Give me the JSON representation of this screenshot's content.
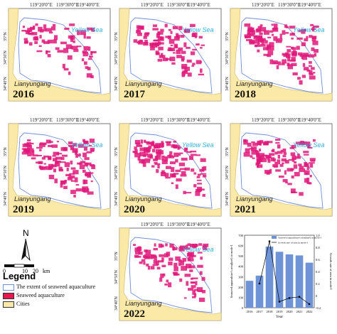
{
  "panels": [
    {
      "year": "2016",
      "density": 0.35
    },
    {
      "year": "2017",
      "density": 0.55
    },
    {
      "year": "2018",
      "density": 0.85
    },
    {
      "year": "2019",
      "density": 0.8
    },
    {
      "year": "2020",
      "density": 0.75
    },
    {
      "year": "2021",
      "density": 0.72
    },
    {
      "year": "2022",
      "density": 0.6
    }
  ],
  "map_text": {
    "sea": "Yellow Sea",
    "city": "Lianyungang",
    "lon_ticks": [
      "119°20'0\"E",
      "119°30'0\"E",
      "119°40'0\"E"
    ],
    "lat_ticks": [
      "35°N",
      "34°50'N",
      "34°40'N"
    ]
  },
  "legend": {
    "north": "N",
    "scale_ticks": [
      "0",
      "10",
      "20"
    ],
    "scale_unit": "km",
    "title": "Legend",
    "items": [
      {
        "label": "The extent of seaweed aquaculture",
        "color": "#ffffff",
        "border": "#6f8ed8"
      },
      {
        "label": "Seaweed aquaculture",
        "color": "#e8174f",
        "border": "#333333"
      },
      {
        "label": "Cities",
        "color": "#fbe9a8",
        "border": "#333333"
      }
    ]
  },
  "colors": {
    "land": "#fbe9a8",
    "sea": "#ffffff",
    "extent": "#6f8ed8",
    "seaweed": "#e0187a",
    "bar": "#6e93d6",
    "line": "#000000"
  },
  "chart_data": {
    "type": "bar",
    "categories": [
      "2016",
      "2017",
      "2018",
      "2019",
      "2020",
      "2021",
      "2022"
    ],
    "series": [
      {
        "name": "Seaweed aquaculture's area(km²) in mode-I",
        "type": "bar",
        "values": [
          260,
          310,
          590,
          540,
          515,
          505,
          435
        ]
      },
      {
        "name": "Growth rate of area in mode-I",
        "type": "line",
        "values": [
          null,
          0.2,
          0.9,
          -0.1,
          -0.04,
          -0.02,
          -0.14
        ]
      }
    ],
    "xlabel": "Year",
    "ylabel": "Seaweed aquaculture's area(km²) in mode-I",
    "y2label": "Growth rate of area in mode-I",
    "ylim": [
      0,
      700
    ],
    "y2lim": [
      -0.2,
      1.0
    ],
    "yticks": [
      "0",
      "100",
      "200",
      "300",
      "400",
      "500",
      "600",
      "700"
    ],
    "y2ticks": [
      "-0.2",
      "0",
      "0.2",
      "0.4",
      "0.6",
      "0.8",
      "1.0"
    ]
  }
}
